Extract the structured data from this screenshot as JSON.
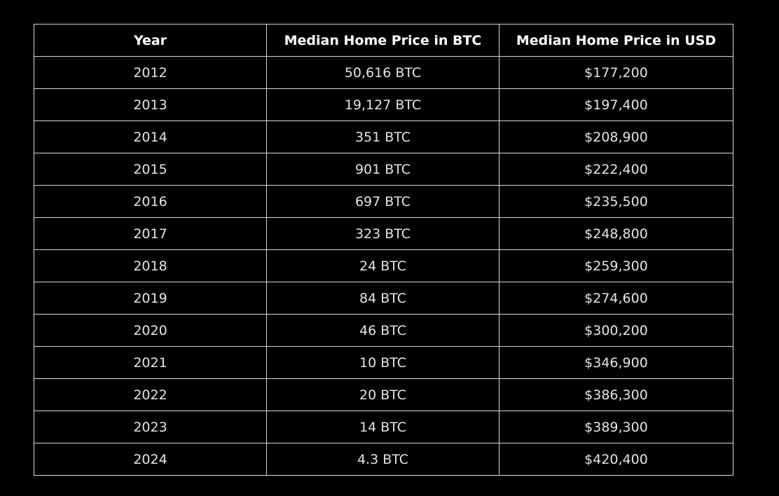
{
  "chart_data": {
    "type": "table",
    "columns": [
      "Year",
      "Median Home Price in BTC",
      "Median Home Price in USD"
    ],
    "rows": [
      [
        "2012",
        "50,616 BTC",
        "$177,200"
      ],
      [
        "2013",
        "19,127 BTC",
        "$197,400"
      ],
      [
        "2014",
        "351 BTC",
        "$208,900"
      ],
      [
        "2015",
        "901 BTC",
        "$222,400"
      ],
      [
        "2016",
        "697 BTC",
        "$235,500"
      ],
      [
        "2017",
        "323 BTC",
        "$248,800"
      ],
      [
        "2018",
        "24 BTC",
        "$259,300"
      ],
      [
        "2019",
        "84 BTC",
        "$274,600"
      ],
      [
        "2020",
        "46 BTC",
        "$300,200"
      ],
      [
        "2021",
        "10 BTC",
        "$346,900"
      ],
      [
        "2022",
        "20 BTC",
        "$386,300"
      ],
      [
        "2023",
        "14 BTC",
        "$389,300"
      ],
      [
        "2024",
        "4.3 BTC",
        "$420,400"
      ]
    ],
    "colors": {
      "background": "#000000",
      "grid": "#d9d9d9",
      "header_text": "#ffffff",
      "cell_text": "#e4e4e4"
    }
  }
}
